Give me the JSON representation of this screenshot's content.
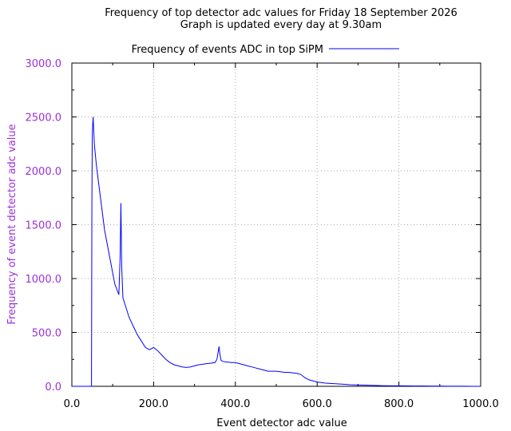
{
  "chart_data": {
    "type": "line",
    "title": "Frequency of top detector adc values for Friday 18 September 2026",
    "subtitle": "Graph is updated every day at 9.30am",
    "xlabel": "Event detector adc value",
    "ylabel": "Frequency of event detector adc value",
    "xlim": [
      0,
      1000
    ],
    "ylim": [
      0,
      3000
    ],
    "xticks": [
      "0.0",
      "200.0",
      "400.0",
      "600.0",
      "800.0",
      "1000.0"
    ],
    "yticks": [
      "0.0",
      "500.0",
      "1000.0",
      "1500.0",
      "2000.0",
      "2500.0",
      "3000.0"
    ],
    "grid": true,
    "legend_position": "top-center",
    "colors": {
      "series": "#0000ff",
      "y_axis_text": "#9b30d9"
    },
    "series": [
      {
        "name": "Frequency of events ADC in top SiPM",
        "x": [
          0,
          48,
          49,
          50,
          52,
          55,
          60,
          65,
          70,
          75,
          80,
          85,
          90,
          95,
          100,
          105,
          110,
          115,
          118,
          120,
          122,
          125,
          130,
          135,
          140,
          150,
          160,
          170,
          180,
          190,
          200,
          210,
          220,
          230,
          240,
          250,
          260,
          270,
          280,
          290,
          300,
          310,
          320,
          330,
          340,
          350,
          355,
          360,
          362,
          365,
          370,
          380,
          390,
          400,
          410,
          420,
          430,
          440,
          450,
          460,
          470,
          480,
          490,
          500,
          510,
          520,
          530,
          540,
          550,
          560,
          570,
          580,
          590,
          600,
          620,
          640,
          660,
          680,
          700,
          720,
          740,
          760,
          780,
          800,
          820,
          840,
          860,
          880,
          900,
          920,
          940,
          960,
          980,
          1000
        ],
        "y": [
          0,
          0,
          1700,
          2350,
          2500,
          2250,
          2050,
          1900,
          1750,
          1600,
          1450,
          1350,
          1250,
          1150,
          1050,
          950,
          900,
          850,
          1200,
          1700,
          1100,
          820,
          760,
          700,
          640,
          560,
          480,
          420,
          360,
          340,
          360,
          330,
          290,
          250,
          220,
          200,
          190,
          180,
          175,
          180,
          190,
          200,
          205,
          210,
          215,
          220,
          250,
          370,
          300,
          240,
          230,
          225,
          220,
          220,
          210,
          200,
          190,
          180,
          170,
          160,
          150,
          140,
          140,
          140,
          135,
          130,
          130,
          125,
          120,
          110,
          80,
          60,
          50,
          40,
          30,
          25,
          20,
          15,
          12,
          10,
          8,
          6,
          5,
          5,
          4,
          3,
          3,
          2,
          2,
          1,
          1,
          1,
          0,
          0
        ]
      }
    ]
  }
}
